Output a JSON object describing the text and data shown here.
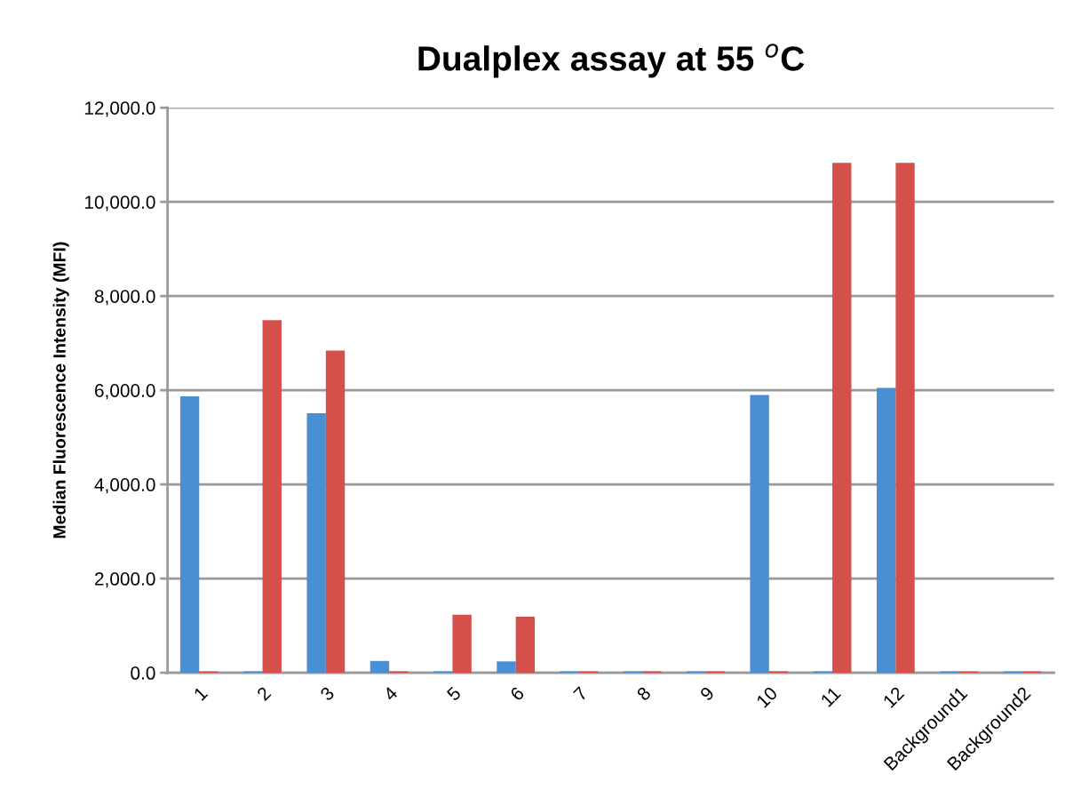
{
  "chart_data": {
    "type": "bar",
    "title": "Dualplex assay at 55 $^{o}$C",
    "ylabel": "Median Fluorescence Intensity (MFI)",
    "categories": [
      "1",
      "2",
      "3",
      "4",
      "5",
      "6",
      "7",
      "8",
      "9",
      "10",
      "11",
      "12",
      "Background1",
      "Background2"
    ],
    "series": [
      {
        "color": "#4a8fd4",
        "values": [
          5870,
          30,
          5510,
          250,
          30,
          240,
          30,
          30,
          30,
          5900,
          30,
          6050,
          30,
          30
        ]
      },
      {
        "color": "#d5504a",
        "values": [
          30,
          7490,
          6840,
          30,
          1230,
          1190,
          30,
          30,
          30,
          30,
          10830,
          10830,
          30,
          30
        ]
      }
    ],
    "ylim": [
      0,
      12000
    ],
    "yticks": [
      {
        "value": 0,
        "label": "0.0"
      },
      {
        "value": 2000,
        "label": "2,000.0"
      },
      {
        "value": 4000,
        "label": "4,000.0"
      },
      {
        "value": 6000,
        "label": "6,000.0"
      },
      {
        "value": 8000,
        "label": "8,000.0"
      },
      {
        "value": 10000,
        "label": "10,000.0"
      },
      {
        "value": 12000,
        "label": "12,000.0"
      }
    ],
    "grid": "y"
  }
}
